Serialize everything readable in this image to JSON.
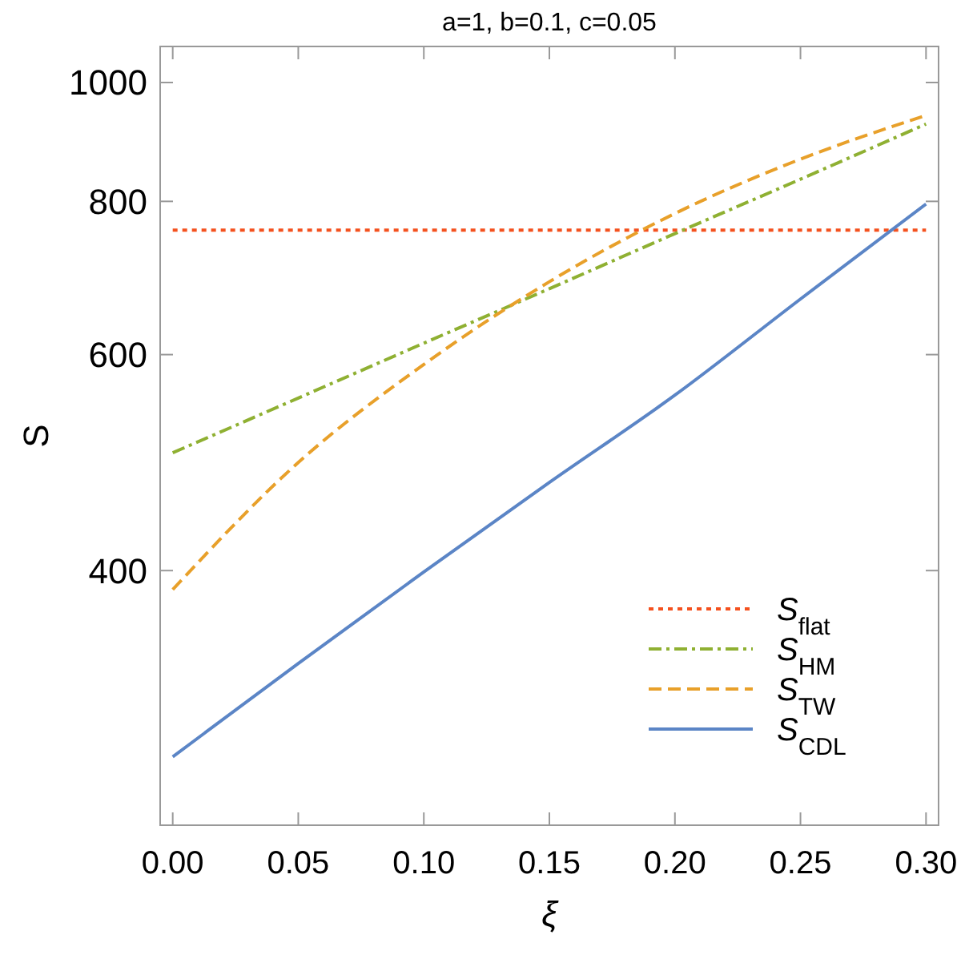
{
  "chart_data": {
    "type": "line",
    "title": "a=1, b=0.1, c=0.05",
    "xlabel": "ξ",
    "ylabel": "S",
    "log": "y",
    "xlim": [
      -0.005,
      0.305
    ],
    "xticks": [
      {
        "value": 0,
        "label": "0.00"
      },
      {
        "value": 0.05,
        "label": "0.05"
      },
      {
        "value": 0.1,
        "label": "0.10"
      },
      {
        "value": 0.15,
        "label": "0.15"
      },
      {
        "value": 0.2,
        "label": "0.20"
      },
      {
        "value": 0.25,
        "label": "0.25"
      },
      {
        "value": 0.3,
        "label": "0.30"
      }
    ],
    "ylim": [
      248,
      1070
    ],
    "yticks": [
      400,
      600,
      800,
      1000
    ],
    "grid": false,
    "legend": "bottom right",
    "marker": "none",
    "x": [
      0,
      0.05,
      0.1,
      0.15,
      0.2,
      0.25,
      0.3
    ],
    "series": [
      {
        "name": "S$_{flat}$",
        "color": "#f4511e",
        "line_style": "dotted",
        "values": [
          758,
          758,
          758,
          758,
          758,
          758,
          758
        ]
      },
      {
        "name": "S$_{HM}$",
        "color": "#8fb032",
        "line_style": "dashdot",
        "values": [
          499,
          553,
          613,
          679,
          753,
          834,
          925
        ]
      },
      {
        "name": "S$_{TW}$",
        "color": "#e8a02a",
        "line_style": "dashed",
        "values": [
          386,
          490,
          589,
          688,
          782,
          866,
          940
        ]
      },
      {
        "name": "S$_{CDL}$",
        "color": "#5b85c6",
        "line_style": "solid",
        "values": [
          282,
          336,
          399,
          472,
          556,
          666,
          796
        ]
      }
    ]
  }
}
